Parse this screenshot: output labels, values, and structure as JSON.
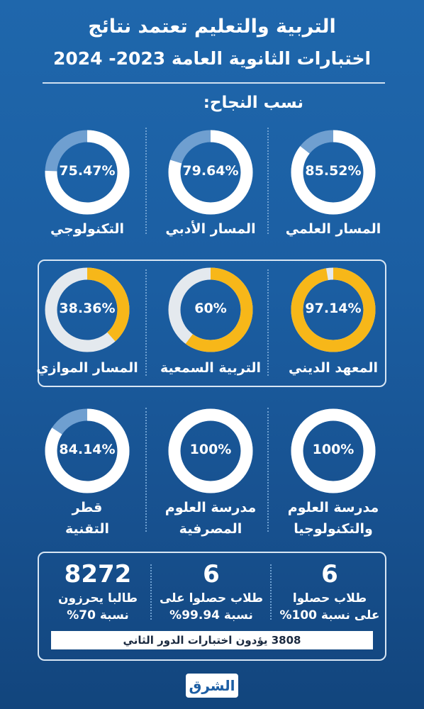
{
  "header": {
    "title_line1": "التربية والتعليم تعتمد نتائج",
    "title_line2": "اختبارات الثانوية العامة 2023- 2024"
  },
  "section_title": "نسب النجاح:",
  "row1": [
    {
      "label": "المسار العلمي",
      "percent_text": "85.52%",
      "value": 85.52
    },
    {
      "label": "المسار الأدبي",
      "percent_text": "79.64%",
      "value": 79.64
    },
    {
      "label": "التكنولوجي",
      "percent_text": "75.47%",
      "value": 75.47
    }
  ],
  "row2": [
    {
      "label": "المعهد الديني",
      "percent_text": "97.14%",
      "value": 97.14
    },
    {
      "label": "التربية السمعية",
      "percent_text": "60%",
      "value": 60
    },
    {
      "label": "المسار الموازي",
      "percent_text": "38.36%",
      "value": 38.36
    }
  ],
  "row3": [
    {
      "label_line1": "مدرسة العلوم",
      "label_line2": "والتكنولوجيا",
      "percent_text": "100%",
      "value": 100
    },
    {
      "label_line1": "مدرسة العلوم",
      "label_line2": "المصرفية",
      "percent_text": "100%",
      "value": 100
    },
    {
      "label_line1": "قطر",
      "label_line2": "التقنية",
      "percent_text": "84.14%",
      "value": 84.14
    }
  ],
  "stats": [
    {
      "number": "6",
      "line1": "طلاب حصلوا",
      "line2": "على نسبة 100%"
    },
    {
      "number": "6",
      "line1": "طلاب حصلوا على",
      "line2": "نسبة 99.94%"
    },
    {
      "number": "8272",
      "line1": "طالبا يحرزون",
      "line2": "نسبة 70%"
    }
  ],
  "footer_bar": "3808 يؤدون اختبارات الدور الثاني",
  "logo_text": "الشرق",
  "colors": {
    "ring_white": "#ffffff",
    "ring_faded_blue": "#6f9fd0",
    "ring_yellow": "#f7b719",
    "ring_light_gray": "#e4e9ee"
  }
}
